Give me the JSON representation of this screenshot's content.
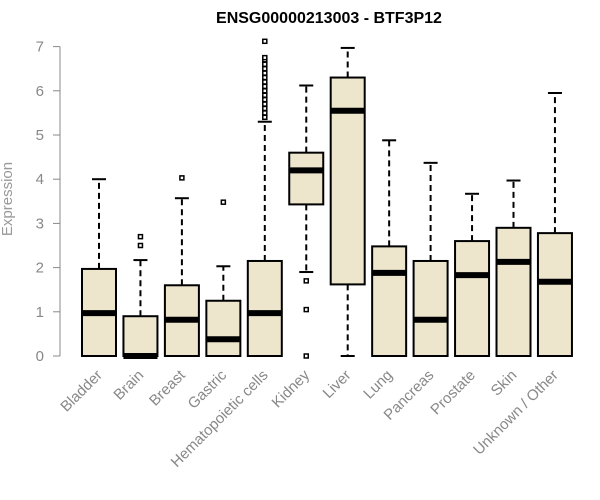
{
  "chart_data": {
    "type": "boxplot",
    "title": "ENSG00000213003 - BTF3P12",
    "xlabel": "",
    "ylabel": "Expression",
    "ylim": [
      0,
      7
    ],
    "yticks": [
      0,
      1,
      2,
      3,
      4,
      5,
      6,
      7
    ],
    "colors": {
      "box_fill": "#ede6cc",
      "stroke": "#000000",
      "median": "#000000",
      "axis_text": "#888888"
    },
    "categories": [
      "Bladder",
      "Brain",
      "Breast",
      "Gastric",
      "Hematopoietic cells",
      "Kidney",
      "Liver",
      "Lung",
      "Pancreas",
      "Prostate",
      "Skin",
      "Unknown / Other"
    ],
    "boxes": [
      {
        "category": "Bladder",
        "min": 0,
        "q1": 0,
        "median": 0.97,
        "q3": 1.97,
        "max": 4.0,
        "outliers": []
      },
      {
        "category": "Brain",
        "min": 0,
        "q1": 0,
        "median": 0.0,
        "q3": 0.9,
        "max": 2.17,
        "outliers": [
          2.5,
          2.7
        ]
      },
      {
        "category": "Breast",
        "min": 0,
        "q1": 0,
        "median": 0.82,
        "q3": 1.6,
        "max": 3.57,
        "outliers": [
          4.03
        ]
      },
      {
        "category": "Gastric",
        "min": 0,
        "q1": 0,
        "median": 0.38,
        "q3": 1.25,
        "max": 2.03,
        "outliers": [
          3.48
        ]
      },
      {
        "category": "Hematopoietic cells",
        "min": 0,
        "q1": 0,
        "median": 0.97,
        "q3": 2.15,
        "max": 5.3,
        "outliers": [
          5.4,
          5.5,
          5.6,
          5.7,
          5.8,
          5.9,
          6.0,
          6.1,
          6.2,
          6.3,
          6.4,
          6.5,
          6.6,
          6.7,
          6.75,
          7.12
        ]
      },
      {
        "category": "Kidney",
        "min": 1.9,
        "q1": 3.43,
        "median": 4.2,
        "q3": 4.6,
        "max": 6.12,
        "outliers": [
          1.7,
          1.05,
          0.0
        ]
      },
      {
        "category": "Liver",
        "min": 0,
        "q1": 1.62,
        "median": 5.55,
        "q3": 6.3,
        "max": 6.97,
        "outliers": []
      },
      {
        "category": "Lung",
        "min": 0,
        "q1": 0,
        "median": 1.88,
        "q3": 2.48,
        "max": 4.88,
        "outliers": []
      },
      {
        "category": "Pancreas",
        "min": 0,
        "q1": 0,
        "median": 0.82,
        "q3": 2.15,
        "max": 4.37,
        "outliers": []
      },
      {
        "category": "Prostate",
        "min": 0,
        "q1": 0,
        "median": 1.83,
        "q3": 2.6,
        "max": 3.67,
        "outliers": []
      },
      {
        "category": "Skin",
        "min": 0,
        "q1": 0,
        "median": 2.13,
        "q3": 2.9,
        "max": 3.97,
        "outliers": []
      },
      {
        "category": "Unknown / Other",
        "min": 0,
        "q1": 0,
        "median": 1.68,
        "q3": 2.78,
        "max": 5.95,
        "outliers": []
      }
    ]
  }
}
